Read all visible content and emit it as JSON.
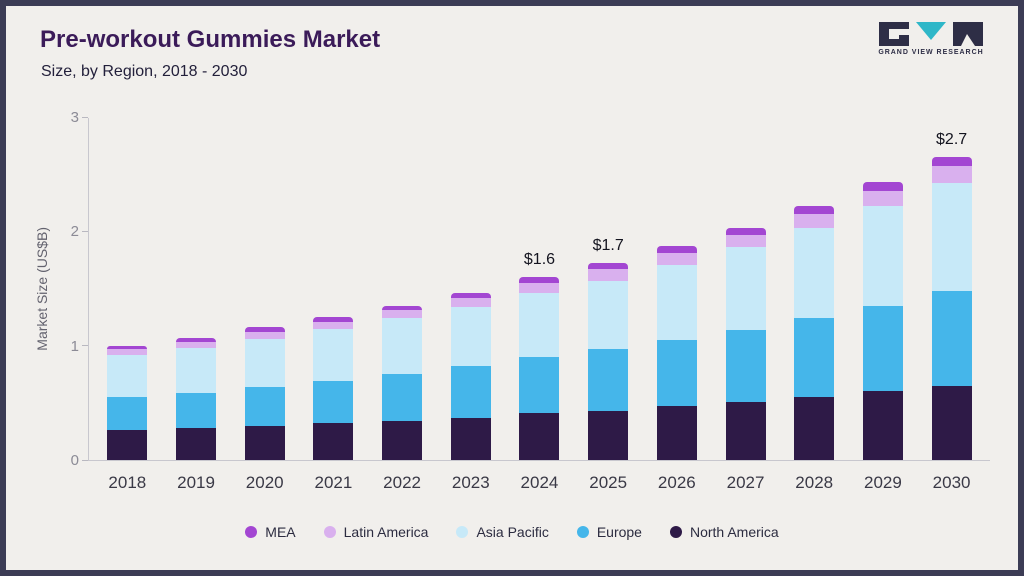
{
  "header": {
    "title": "Pre-workout Gummies Market",
    "subtitle": "Size, by Region, 2018 - 2030"
  },
  "logo": {
    "caption": "GRAND VIEW RESEARCH"
  },
  "chart_data": {
    "type": "bar",
    "stacked": true,
    "title": "Pre-workout Gummies Market Size, by Region, 2018 - 2030",
    "ylabel": "Market Size (US$B)",
    "ylim": [
      0,
      3
    ],
    "yticks": [
      0,
      1,
      2,
      3
    ],
    "categories": [
      "2018",
      "2019",
      "2020",
      "2021",
      "2022",
      "2023",
      "2024",
      "2025",
      "2026",
      "2027",
      "2028",
      "2029",
      "2030"
    ],
    "series": [
      {
        "name": "North America",
        "color": "#2e1a47",
        "values": [
          0.26,
          0.28,
          0.3,
          0.32,
          0.34,
          0.37,
          0.41,
          0.43,
          0.47,
          0.51,
          0.55,
          0.6,
          0.65
        ]
      },
      {
        "name": "Europe",
        "color": "#45b6ea",
        "values": [
          0.29,
          0.31,
          0.34,
          0.37,
          0.41,
          0.45,
          0.49,
          0.54,
          0.58,
          0.63,
          0.69,
          0.75,
          0.83
        ]
      },
      {
        "name": "Asia Pacific",
        "color": "#c7e9f8",
        "values": [
          0.37,
          0.39,
          0.42,
          0.46,
          0.49,
          0.52,
          0.56,
          0.6,
          0.66,
          0.72,
          0.79,
          0.87,
          0.94
        ]
      },
      {
        "name": "Latin America",
        "color": "#d9b0ee",
        "values": [
          0.05,
          0.05,
          0.06,
          0.06,
          0.07,
          0.08,
          0.09,
          0.1,
          0.1,
          0.11,
          0.12,
          0.13,
          0.15
        ]
      },
      {
        "name": "MEA",
        "color": "#a346d2",
        "values": [
          0.03,
          0.04,
          0.04,
          0.04,
          0.04,
          0.04,
          0.05,
          0.05,
          0.06,
          0.06,
          0.07,
          0.08,
          0.08
        ]
      }
    ],
    "legend_position": "bottom",
    "grid": false,
    "annotations": [
      {
        "category": "2024",
        "text": "$1.6"
      },
      {
        "category": "2025",
        "text": "$1.7"
      },
      {
        "category": "2030",
        "text": "$2.7"
      }
    ]
  }
}
